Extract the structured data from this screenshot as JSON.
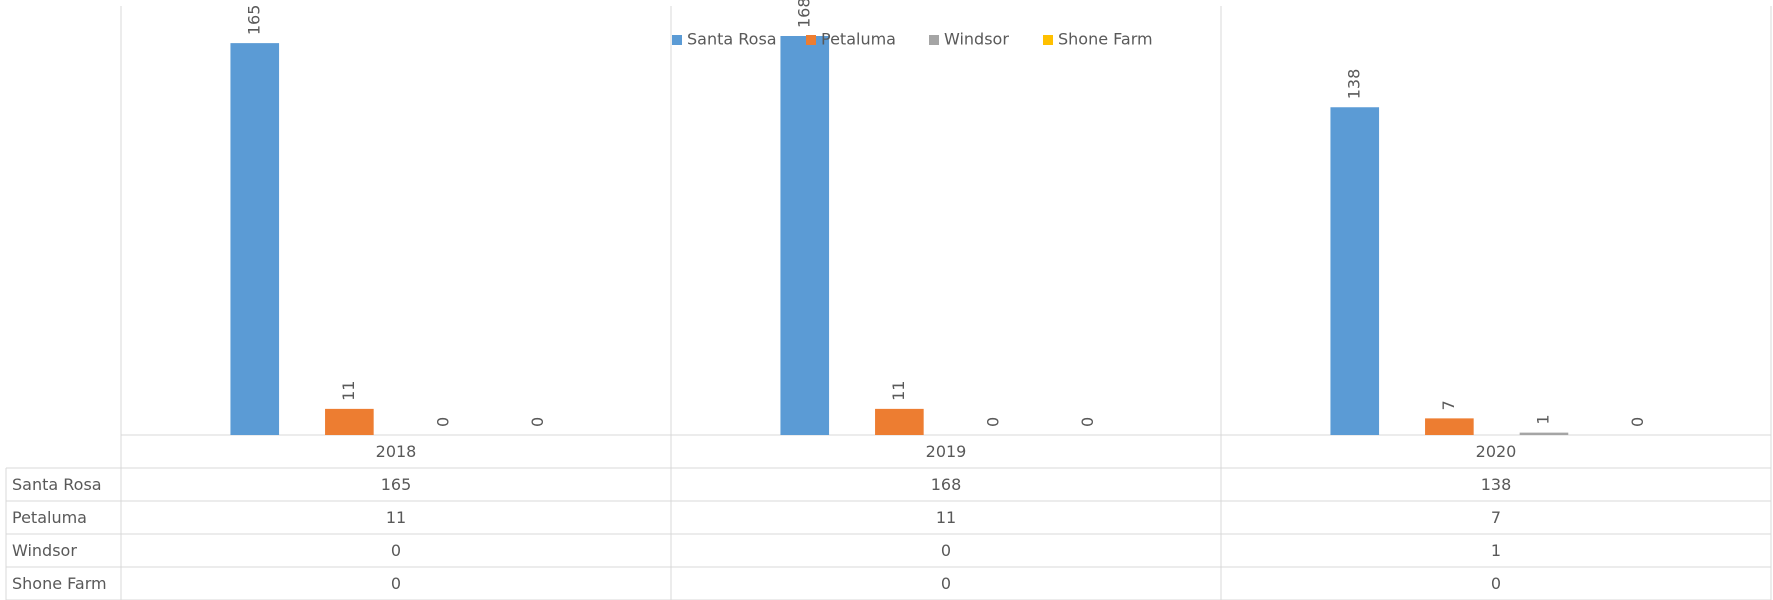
{
  "chart_data": {
    "type": "bar",
    "categories": [
      "2018",
      "2019",
      "2020"
    ],
    "series": [
      {
        "name": "Santa Rosa",
        "color": "#5b9bd5",
        "values": [
          165,
          168,
          138
        ]
      },
      {
        "name": "Petaluma",
        "color": "#ed7d31",
        "values": [
          11,
          11,
          7
        ]
      },
      {
        "name": "Windsor",
        "color": "#a5a5a5",
        "values": [
          0,
          0,
          1
        ]
      },
      {
        "name": "Shone Farm",
        "color": "#ffc000",
        "values": [
          0,
          0,
          0
        ]
      }
    ],
    "legend": "top",
    "data_table": true
  }
}
